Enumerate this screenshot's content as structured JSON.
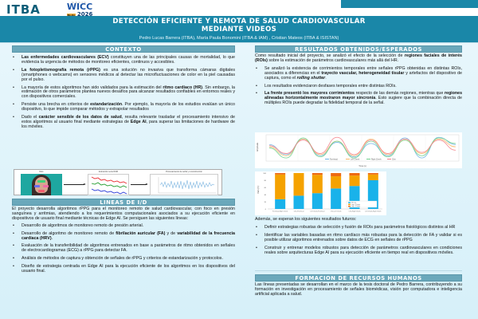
{
  "logos": {
    "itba": "ITBA",
    "wicc_top": "CACIC",
    "wicc_name": "WICC",
    "wicc_city": "Bs.As",
    "wicc_year": "2026"
  },
  "header": {
    "title_line1": "DETECCIÓN EFICIENTE Y REMOTA DE SALUD CARDIOVASCULAR",
    "title_line2": "MEDIANTE VIDEOS",
    "authors": "Pedro Lucas Barrera (ITBA), María Paula Bonomini (ITBA & IAM) , Cristian Mateos (ITBA & ISISTAN)"
  },
  "colors": {
    "header_bg": "#1a87a8",
    "section_head_bg": "#6aa8bb",
    "page_bg": "#e3f4fb",
    "itba_logo": "#0d5d78"
  },
  "contexto": {
    "heading": "CONTEXTO",
    "bullets": [
      {
        "bold": "Las enfermedades cardiovasculares (ECV)",
        "text": " constituyen una de las principales causas de mortalidad, lo que evidencia la urgencia de métodos de monitoreo eficientes, continuos y accesibles."
      },
      {
        "bold": "La fotopletismografía remota (rPPG)",
        "text": " es una solución no invasiva que transforma cámaras digitales (smartphones o webcams) en sensores médicos al detectar las microfluctuaciones de color en la piel causadas por el pulso."
      },
      {
        "pre": "La mayoría de estos algoritmos han sido validados para la estimación del ",
        "bold": "ritmo cardíaco (HR)",
        "text": ". Sin embargo, la estimación de otros parámetros plantea nuevos desafíos para alcanzar resultados confiables en entornos reales y con dispositivos comerciales."
      },
      {
        "pre": "Persiste una brecha en criterios de ",
        "bold": "estandarización",
        "text": ". Por ejemplo, la mayoría de los estudios evalúan un único dispositivo, lo que impide comparar métodos y extrapolar resultados"
      },
      {
        "pre": "Dado el ",
        "bold": "carácter sensible de los datos de salud",
        "text": ", resulta relevante trasladar el procesamiento intensivo de estos algoritmos al usuario final mediante estrategias de ",
        "bold2": "Edge AI",
        "text2": ", para superar las limitaciones de hardware de los móviles."
      }
    ]
  },
  "pipeline_figure": {
    "labels": [
      "Rois",
      "Extracción serie RGB",
      "Procesamiento de señal y reconstrucción"
    ]
  },
  "lineas": {
    "heading": "LINEAS DE I/D",
    "intro": "El proyecto desarrolla algoritmos rPPG para el monitoreo remoto de salud cardiovascular, con foco en presión sanguínea y arritmias, atendiendo a los requerimientos computacionales asociados a su ejecución eficiente en dispositivos de usuario final mediante técnicas de Edge AI. Se persiguen las siguientes líneas:",
    "bullets": [
      {
        "text": "Desarrollo de algoritmos de monitoreo remoto de presión arterial."
      },
      {
        "pre": "Desarrollo de algoritmo de monitoreo remoto de ",
        "bold": "fibrilación auricular (FA)",
        "mid": " y de ",
        "bold2": "variabilidad de la frecuencia cardíaca (HRV)",
        "text": "."
      },
      {
        "text": "Evaluación de la transferibilidad de algoritmos entrenados en base a parámetros de ritmo obtenidos en señales de electrocardiogramas (ECG) a rPPG para detectar FA."
      },
      {
        "text": "Análisis de métodos de captura y obtención de señales de rPPG y criterios de estandarización y protocolos."
      },
      {
        "text": "Diseño de estrategia centrada en Edge AI para la ejecución eficiente  de los algoritmos en los dispositivos del usuario final."
      }
    ]
  },
  "resultados": {
    "heading": "RESULTADOS OBTENIDOS/ESPERADOS",
    "intro_pre": "Como resultado inicial del proyecto, se analizó el efecto de la selección de ",
    "intro_bold": "regiones faciales de interés (ROIs)",
    "intro_post": " sobre la estimación de parámetros cardiovasculares más allá del HR.",
    "bullets": [
      {
        "pre": "Se analizó la existencia de corrimientos temporales entre señales rPPG obtenidas en distintas ROIs, asociados a diferencias en el ",
        "bold": "trayecto vascular, heterogeneidad tisular",
        "text": " y artefactos del dispositivo de captura, como el ",
        "bold2": "rolling shutter",
        "text2": "."
      },
      {
        "text": "Los resultados evidenciaron desfases temporales entre distintas ROIs."
      },
      {
        "bold": "La frente presentó los mayores corrimientos",
        "text": " respecto de las demás regiones, mientras que ",
        "bold2": "regiones alineadas horizontalmente mostraron mayor sincronía",
        "text2": ". Esto sugiere que la combinación directa de múltiples ROIs puede degradar la fidelidad temporal de la señal."
      }
    ],
    "future_intro": "Además, se esperan los siguientes resultados futuros:",
    "future_bullets": [
      "Definir estrategias robustas de selección y fusión de ROIs para parámetros fisiológicos distintos al HR",
      "Identificar las variables basadas en ritmo cardíaco más robustas para la detección de FA y validar si es posible utilizar algoritmos entrenados sobre datos de ECG en señales de rPPG",
      "Construir y entrenar modelos robustos para detección de parámetros cardiovasculares en condiciones reales sobre arquitecturas Edge AI para su ejecución eficiente en tiempo real en dispositivos móviles."
    ]
  },
  "formacion": {
    "heading": "FORMACION DE RECURSOS HUMANOS",
    "text": "Las líneas presentadas se desarrollan en el marco de la tesis doctoral de Pedro Barrera, contribuyendo a su formación en investigación en procesamiento de señales biomédicas, visión por computadora e inteligencia artificial aplicada a salud."
  },
  "chart_data": [
    {
      "type": "line",
      "title": "",
      "xlabel": "Time (s)",
      "ylabel": "Amplitude",
      "legend": [
        "Forehead",
        "Left Cheek",
        "Right Cheek",
        "Chin"
      ],
      "colors": [
        "#6cb4e4",
        "#f7b96a",
        "#6fd08c",
        "#f47c86"
      ],
      "x_ticks": [
        "10",
        "",
        "",
        "",
        "",
        "",
        "",
        "",
        "11"
      ],
      "series": [
        {
          "name": "Forehead",
          "values": [
            0.3,
            -0.6,
            0.8,
            -0.7,
            0.5,
            -0.8,
            0.4,
            -0.7,
            0.9,
            -0.9,
            0.95,
            0.3
          ]
        },
        {
          "name": "Left Cheek",
          "values": [
            0.1,
            -0.7,
            0.8,
            -0.6,
            0.6,
            -0.7,
            0.8,
            -0.6,
            0.7,
            -0.5,
            0.8,
            0.1
          ]
        },
        {
          "name": "Right Cheek",
          "values": [
            0.0,
            -0.9,
            0.9,
            -0.8,
            0.6,
            -0.9,
            0.6,
            -0.8,
            0.7,
            -0.7,
            0.9,
            0.4
          ]
        },
        {
          "name": "Chin",
          "values": [
            0.2,
            -0.5,
            0.7,
            -0.5,
            0.95,
            -0.6,
            0.7,
            -0.5,
            0.8,
            -0.4,
            0.7,
            -0.2
          ]
        }
      ]
    },
    {
      "type": "bar",
      "stacked": true,
      "title": "",
      "xlabel": "",
      "ylabel": "Pairs (%)",
      "ylim": [
        0,
        100
      ],
      "y_ticks": [
        "0",
        "20",
        "40",
        "60",
        "80",
        "100"
      ],
      "categories": [
        "Forehead-Right Cheek",
        "Chin-Forehead",
        "Left Cheek-Forehead",
        "Chin-Left Cheek",
        "Chin-Right Cheek",
        "Left Cheek-Right Cheek"
      ],
      "legend": [
        "No Lag",
        "Lag ≤ 1 frame",
        "Lag > 1 frame"
      ],
      "colors": [
        "#19b2ea",
        "#f5a200",
        "#ee6a12"
      ],
      "series": [
        {
          "name": "No Lag",
          "values": [
            27,
            37,
            44,
            57,
            64,
            80
          ]
        },
        {
          "name": "Lag ≤ 1 frame",
          "values": [
            69,
            63,
            51,
            34,
            29,
            16
          ]
        },
        {
          "name": "Lag > 1 frame",
          "values": [
            4,
            0,
            5,
            9,
            7,
            4
          ]
        }
      ]
    }
  ]
}
